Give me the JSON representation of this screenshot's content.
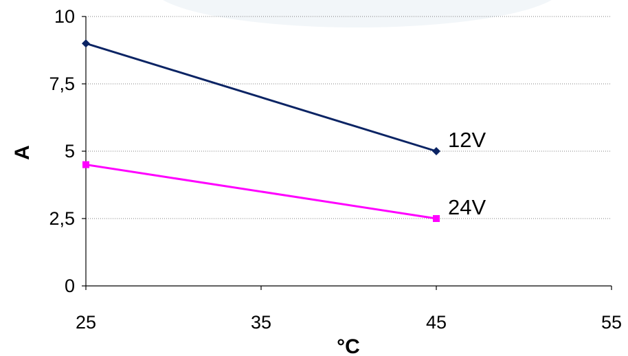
{
  "chart_data": {
    "type": "line",
    "title": "",
    "xlabel": "°C",
    "ylabel": "A",
    "xlim": [
      25,
      55
    ],
    "ylim": [
      0,
      10
    ],
    "x_ticks": [
      "25",
      "35",
      "45",
      "55"
    ],
    "y_ticks": [
      "0",
      "2,5",
      "5",
      "7,5",
      "10"
    ],
    "grid": true,
    "legend": "inline labels at line ends",
    "series": [
      {
        "name": "12V",
        "x": [
          25,
          45
        ],
        "values": [
          9,
          5
        ],
        "color": "#0b2464",
        "marker": "diamond"
      },
      {
        "name": "24V",
        "x": [
          25,
          45
        ],
        "values": [
          4.5,
          2.5
        ],
        "color": "#ff00ff",
        "marker": "square"
      }
    ]
  }
}
